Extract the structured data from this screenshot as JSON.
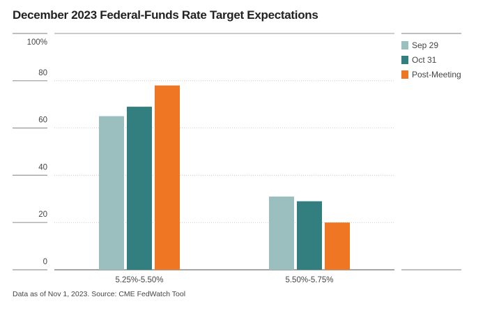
{
  "chart_data": {
    "type": "bar",
    "title": "December 2023 Federal-Funds Rate Target Expectations",
    "categories": [
      "5.25%-5.50%",
      "5.50%-5.75%"
    ],
    "series": [
      {
        "name": "Sep 29",
        "color": "#9bbfbf",
        "values": [
          65,
          31
        ]
      },
      {
        "name": "Oct 31",
        "color": "#337f7f",
        "values": [
          69,
          29
        ]
      },
      {
        "name": "Post-Meeting",
        "color": "#ef7622",
        "values": [
          78,
          20
        ]
      }
    ],
    "yticks": [
      "0",
      "20",
      "40",
      "60",
      "80",
      "100%"
    ],
    "ytick_values": [
      0,
      20,
      40,
      60,
      80,
      100
    ],
    "ylim": [
      0,
      100
    ],
    "xlabel": "",
    "ylabel": "",
    "grid": true,
    "legend": "top-right",
    "note": "Data as of Nov 1, 2023. Source: CME FedWatch Tool"
  }
}
